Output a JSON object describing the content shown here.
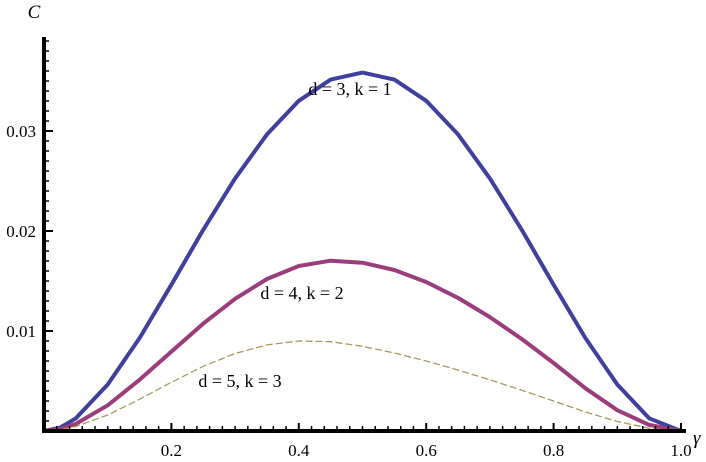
{
  "chart_data": {
    "type": "line",
    "title": "",
    "xlabel": "γ",
    "ylabel": "C",
    "xlim": [
      0,
      1.0
    ],
    "ylim": [
      0,
      0.04
    ],
    "xticks": [
      {
        "value": 0.2,
        "label": "0.2"
      },
      {
        "value": 0.4,
        "label": "0.4"
      },
      {
        "value": 0.6,
        "label": "0.6"
      },
      {
        "value": 0.8,
        "label": "0.8"
      },
      {
        "value": 1.0,
        "label": "1.0"
      }
    ],
    "yticks": [
      {
        "value": 0.01,
        "label": "0.01"
      },
      {
        "value": 0.02,
        "label": "0.02"
      },
      {
        "value": 0.03,
        "label": "0.03"
      }
    ],
    "grid": false,
    "legend": "none",
    "series": [
      {
        "annotation": "d = 3, k = 1",
        "color": "#3f3f9e",
        "style": "solid",
        "x": [
          0,
          0.025,
          0.05,
          0.1,
          0.15,
          0.2,
          0.25,
          0.3,
          0.35,
          0.4,
          0.45,
          0.5,
          0.55,
          0.6,
          0.65,
          0.7,
          0.75,
          0.8,
          0.85,
          0.9,
          0.95,
          1.0
        ],
        "y": [
          0,
          0.00033,
          0.00127,
          0.00465,
          0.00929,
          0.01463,
          0.02012,
          0.02526,
          0.02966,
          0.03302,
          0.03514,
          0.03584,
          0.03514,
          0.03302,
          0.02966,
          0.02526,
          0.02012,
          0.01463,
          0.00929,
          0.00465,
          0.00127,
          0
        ]
      },
      {
        "annotation": "d = 4, k = 2",
        "color": "#9b3c7c",
        "style": "solid",
        "x": [
          0,
          0.025,
          0.05,
          0.1,
          0.15,
          0.2,
          0.25,
          0.3,
          0.35,
          0.4,
          0.45,
          0.5,
          0.55,
          0.6,
          0.65,
          0.7,
          0.75,
          0.8,
          0.85,
          0.9,
          0.95,
          1.0
        ],
        "y": [
          0,
          0.00019,
          0.00071,
          0.00257,
          0.00512,
          0.00794,
          0.01074,
          0.01322,
          0.0152,
          0.0165,
          0.01703,
          0.01683,
          0.0161,
          0.0149,
          0.01331,
          0.01139,
          0.0092,
          0.0068,
          0.00427,
          0.00208,
          0.00061,
          0
        ]
      },
      {
        "annotation": "d = 5, k = 3",
        "color": "#a89a5c",
        "style": "dashed",
        "x": [
          0,
          0.025,
          0.05,
          0.1,
          0.15,
          0.2,
          0.25,
          0.3,
          0.35,
          0.4,
          0.45,
          0.5,
          0.55,
          0.6,
          0.65,
          0.7,
          0.75,
          0.8,
          0.85,
          0.9,
          0.95,
          1.0
        ],
        "y": [
          0,
          0.00012,
          0.00045,
          0.0016,
          0.00317,
          0.00487,
          0.00647,
          0.00775,
          0.00861,
          0.009,
          0.00893,
          0.00847,
          0.0078,
          0.007,
          0.0061,
          0.00512,
          0.00408,
          0.003,
          0.0019,
          0.00095,
          0.00028,
          0
        ]
      }
    ]
  }
}
